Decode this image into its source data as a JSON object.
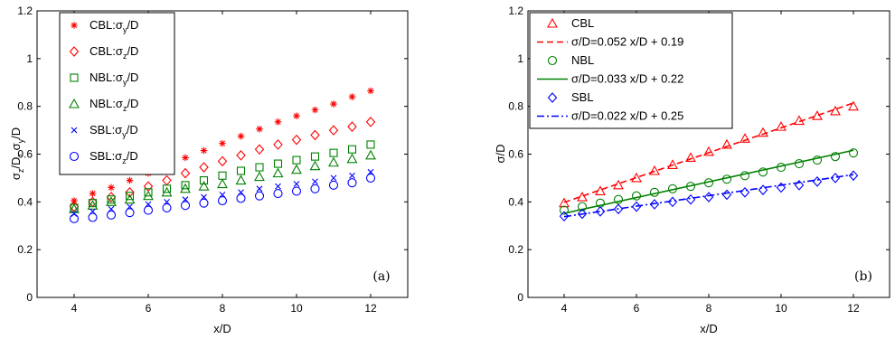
{
  "chart_data": [
    {
      "type": "scatter",
      "panel_label": "(a)",
      "xlabel": "x/D",
      "ylabel": {
        "base1": "σ",
        "sub1": "z",
        "mid": "/D, σ",
        "sub2": "y",
        "end": "/D"
      },
      "xlim": [
        3,
        13
      ],
      "ylim": [
        0,
        1.2
      ],
      "xticks": [
        "4",
        "6",
        "8",
        "10",
        "12"
      ],
      "yticks": [
        "0",
        "0.2",
        "0.4",
        "0.6",
        "0.8",
        "1",
        "1.2"
      ],
      "grid": false,
      "legend_position": "top-left",
      "series": [
        {
          "name": "CBL:σy/D",
          "legend": {
            "pre": "CBL:σ",
            "sub": "y",
            "post": "/D"
          },
          "marker": "star",
          "color": "#ff0000",
          "x": [
            4,
            4.5,
            5,
            5.5,
            6,
            6.5,
            7,
            7.5,
            8,
            8.5,
            9,
            9.5,
            10,
            10.5,
            11,
            11.5,
            12
          ],
          "y": [
            0.405,
            0.435,
            0.46,
            0.49,
            0.52,
            0.56,
            0.585,
            0.615,
            0.645,
            0.675,
            0.705,
            0.735,
            0.76,
            0.785,
            0.81,
            0.84,
            0.865
          ]
        },
        {
          "name": "CBL:σz/D",
          "legend": {
            "pre": "CBL:σ",
            "sub": "z",
            "post": "/D"
          },
          "marker": "diamond",
          "color": "#ff0000",
          "x": [
            4,
            4.5,
            5,
            5.5,
            6,
            6.5,
            7,
            7.5,
            8,
            8.5,
            9,
            9.5,
            10,
            10.5,
            11,
            11.5,
            12
          ],
          "y": [
            0.38,
            0.4,
            0.42,
            0.44,
            0.465,
            0.49,
            0.52,
            0.545,
            0.57,
            0.595,
            0.62,
            0.64,
            0.66,
            0.68,
            0.7,
            0.715,
            0.735
          ]
        },
        {
          "name": "NBL:σy/D",
          "legend": {
            "pre": "NBL:σ",
            "sub": "y",
            "post": "/D"
          },
          "marker": "square",
          "color": "#008000",
          "x": [
            4,
            4.5,
            5,
            5.5,
            6,
            6.5,
            7,
            7.5,
            8,
            8.5,
            9,
            9.5,
            10,
            10.5,
            11,
            11.5,
            12
          ],
          "y": [
            0.375,
            0.395,
            0.41,
            0.425,
            0.44,
            0.455,
            0.47,
            0.49,
            0.51,
            0.53,
            0.545,
            0.56,
            0.575,
            0.59,
            0.605,
            0.62,
            0.64
          ]
        },
        {
          "name": "NBL:σz/D",
          "legend": {
            "pre": "NBL:σ",
            "sub": "z",
            "post": "/D"
          },
          "marker": "triangle",
          "color": "#008000",
          "x": [
            4,
            4.5,
            5,
            5.5,
            6,
            6.5,
            7,
            7.5,
            8,
            8.5,
            9,
            9.5,
            10,
            10.5,
            11,
            11.5,
            12
          ],
          "y": [
            0.37,
            0.385,
            0.4,
            0.41,
            0.425,
            0.44,
            0.455,
            0.465,
            0.475,
            0.49,
            0.505,
            0.52,
            0.535,
            0.55,
            0.565,
            0.58,
            0.595
          ]
        },
        {
          "name": "SBL:σy/D",
          "legend": {
            "pre": "SBL:σ",
            "sub": "y",
            "post": "/D"
          },
          "marker": "x",
          "color": "#0000ff",
          "x": [
            4,
            4.5,
            5,
            5.5,
            6,
            6.5,
            7,
            7.5,
            8,
            8.5,
            9,
            9.5,
            10,
            10.5,
            11,
            11.5,
            12
          ],
          "y": [
            0.35,
            0.36,
            0.37,
            0.38,
            0.39,
            0.4,
            0.41,
            0.42,
            0.43,
            0.44,
            0.455,
            0.465,
            0.475,
            0.485,
            0.5,
            0.51,
            0.525
          ]
        },
        {
          "name": "SBL:σz/D",
          "legend": {
            "pre": "SBL:σ",
            "sub": "z",
            "post": "/D"
          },
          "marker": "circle",
          "color": "#0000ff",
          "x": [
            4,
            4.5,
            5,
            5.5,
            6,
            6.5,
            7,
            7.5,
            8,
            8.5,
            9,
            9.5,
            10,
            10.5,
            11,
            11.5,
            12
          ],
          "y": [
            0.33,
            0.335,
            0.345,
            0.355,
            0.365,
            0.375,
            0.385,
            0.395,
            0.405,
            0.415,
            0.425,
            0.435,
            0.445,
            0.455,
            0.47,
            0.48,
            0.5
          ]
        }
      ]
    },
    {
      "type": "line",
      "panel_label": "(b)",
      "xlabel": "x/D",
      "ylabel": "σ/D",
      "xlim": [
        3,
        13
      ],
      "ylim": [
        0,
        1.2
      ],
      "xticks": [
        "4",
        "6",
        "8",
        "10",
        "12"
      ],
      "yticks": [
        "0",
        "0.2",
        "0.4",
        "0.6",
        "0.8",
        "1",
        "1.2"
      ],
      "grid": false,
      "legend_position": "top-left",
      "series": [
        {
          "name": "CBL",
          "marker": "triangle",
          "color": "#ff0000",
          "x": [
            4,
            4.5,
            5,
            5.5,
            6,
            6.5,
            7,
            7.5,
            8,
            8.5,
            9,
            9.5,
            10,
            10.5,
            11,
            11.5,
            12
          ],
          "y": [
            0.395,
            0.42,
            0.445,
            0.47,
            0.5,
            0.53,
            0.555,
            0.585,
            0.61,
            0.64,
            0.665,
            0.69,
            0.715,
            0.74,
            0.76,
            0.78,
            0.8
          ]
        },
        {
          "name": "σ/D=0.052 x/D + 0.19",
          "fit": true,
          "slope": 0.052,
          "intercept": 0.19,
          "style": "dashed",
          "color": "#ff0000"
        },
        {
          "name": "NBL",
          "marker": "circle",
          "color": "#008000",
          "x": [
            4,
            4.5,
            5,
            5.5,
            6,
            6.5,
            7,
            7.5,
            8,
            8.5,
            9,
            9.5,
            10,
            10.5,
            11,
            11.5,
            12
          ],
          "y": [
            0.365,
            0.38,
            0.395,
            0.41,
            0.425,
            0.44,
            0.455,
            0.465,
            0.48,
            0.495,
            0.51,
            0.525,
            0.545,
            0.56,
            0.575,
            0.59,
            0.605
          ]
        },
        {
          "name": "σ/D=0.033 x/D + 0.22",
          "fit": true,
          "slope": 0.033,
          "intercept": 0.22,
          "style": "solid",
          "color": "#008000"
        },
        {
          "name": "SBL",
          "marker": "diamond",
          "color": "#0000ff",
          "x": [
            4,
            4.5,
            5,
            5.5,
            6,
            6.5,
            7,
            7.5,
            8,
            8.5,
            9,
            9.5,
            10,
            10.5,
            11,
            11.5,
            12
          ],
          "y": [
            0.34,
            0.35,
            0.36,
            0.37,
            0.38,
            0.39,
            0.4,
            0.41,
            0.42,
            0.43,
            0.44,
            0.45,
            0.46,
            0.47,
            0.485,
            0.5,
            0.51
          ]
        },
        {
          "name": "σ/D=0.022 x/D + 0.25",
          "fit": true,
          "slope": 0.022,
          "intercept": 0.25,
          "style": "dashdot",
          "color": "#0000ff"
        }
      ]
    }
  ]
}
